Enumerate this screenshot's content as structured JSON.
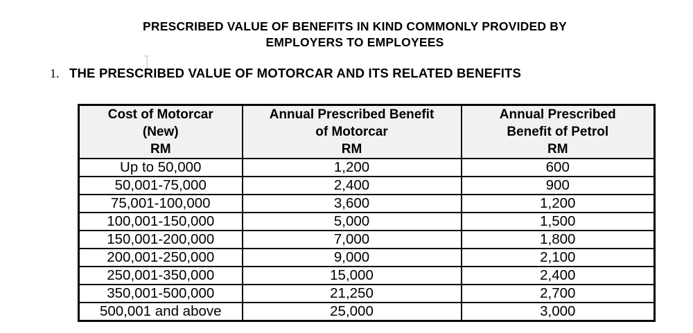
{
  "page": {
    "title_line1": "PRESCRIBED VALUE OF BENEFITS IN KIND COMMONLY PROVIDED BY",
    "title_line2": "EMPLOYERS TO EMPLOYEES",
    "section_number": "1.",
    "section_heading": "THE PRESCRIBED VALUE OF MOTORCAR AND ITS RELATED BENEFITS"
  },
  "table": {
    "headers": [
      {
        "lines": [
          "Cost of Motorcar",
          "(New)",
          "RM"
        ]
      },
      {
        "lines": [
          "Annual Prescribed Benefit",
          "of Motorcar",
          "RM"
        ]
      },
      {
        "lines": [
          "Annual Prescribed",
          "Benefit of Petrol",
          "RM"
        ]
      }
    ],
    "rows": [
      [
        "Up to 50,000",
        "1,200",
        "600"
      ],
      [
        "50,001-75,000",
        "2,400",
        "900"
      ],
      [
        "75,001-100,000",
        "3,600",
        "1,200"
      ],
      [
        "100,001-150,000",
        "5,000",
        "1,500"
      ],
      [
        "150,001-200,000",
        "7,000",
        "1,800"
      ],
      [
        "200,001-250,000",
        "9,000",
        "2,100"
      ],
      [
        "250,001-350,000",
        "15,000",
        "2,400"
      ],
      [
        "350,001-500,000",
        "21,250",
        "2,700"
      ],
      [
        "500,001 and above",
        "25,000",
        "3,000"
      ]
    ]
  },
  "colors": {
    "page_background": "#ffffff",
    "text": "#000000",
    "table_border": "#000000",
    "header_background": "#f1f1f1",
    "cursor_artifact": "#dadfe3"
  }
}
